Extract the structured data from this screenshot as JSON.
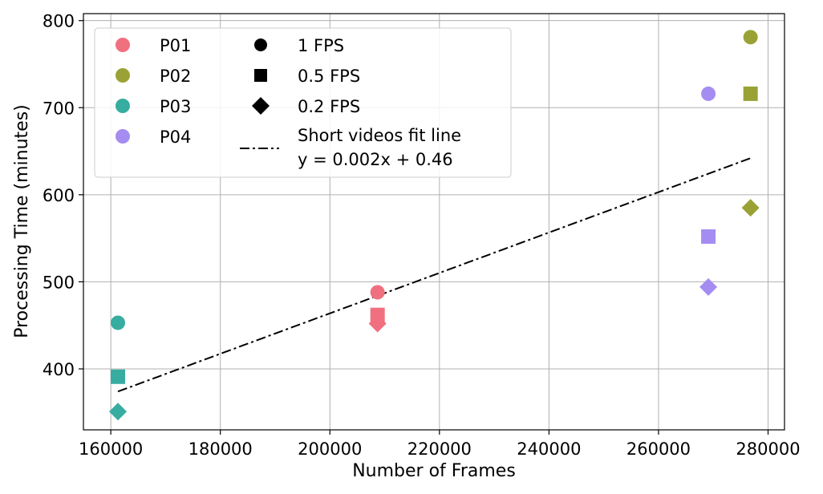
{
  "chart_data": {
    "type": "scatter",
    "xlabel": "Number of Frames",
    "ylabel": "Processing Time (minutes)",
    "xlim": [
      155000,
      283000
    ],
    "ylim": [
      330,
      808
    ],
    "xticks": [
      160000,
      180000,
      200000,
      220000,
      240000,
      260000,
      280000
    ],
    "yticks": [
      400,
      500,
      600,
      700,
      800
    ],
    "xtick_labels": [
      "160000",
      "180000",
      "200000",
      "220000",
      "240000",
      "260000",
      "280000"
    ],
    "ytick_labels": [
      "400",
      "500",
      "600",
      "700",
      "800"
    ],
    "grid": true,
    "legend_position": "top-left",
    "participants": [
      {
        "name": "P01",
        "color": "#f0707f"
      },
      {
        "name": "P02",
        "color": "#9aa235"
      },
      {
        "name": "P03",
        "color": "#36ada0"
      },
      {
        "name": "P04",
        "color": "#a58cf0"
      }
    ],
    "markers": [
      {
        "name": "1 FPS",
        "shape": "circle"
      },
      {
        "name": "0.5 FPS",
        "shape": "square"
      },
      {
        "name": "0.2 FPS",
        "shape": "diamond"
      }
    ],
    "points": [
      {
        "participant": "P01",
        "marker": "1 FPS",
        "x": 208700,
        "y": 488
      },
      {
        "participant": "P01",
        "marker": "0.5 FPS",
        "x": 208700,
        "y": 462
      },
      {
        "participant": "P01",
        "marker": "0.2 FPS",
        "x": 208700,
        "y": 452
      },
      {
        "participant": "P02",
        "marker": "1 FPS",
        "x": 276800,
        "y": 781
      },
      {
        "participant": "P02",
        "marker": "0.5 FPS",
        "x": 276800,
        "y": 716
      },
      {
        "participant": "P02",
        "marker": "0.2 FPS",
        "x": 276800,
        "y": 585
      },
      {
        "participant": "P03",
        "marker": "1 FPS",
        "x": 161300,
        "y": 453
      },
      {
        "participant": "P03",
        "marker": "0.5 FPS",
        "x": 161300,
        "y": 391
      },
      {
        "participant": "P03",
        "marker": "0.2 FPS",
        "x": 161300,
        "y": 351
      },
      {
        "participant": "P04",
        "marker": "1 FPS",
        "x": 269100,
        "y": 716
      },
      {
        "participant": "P04",
        "marker": "0.5 FPS",
        "x": 269100,
        "y": 552
      },
      {
        "participant": "P04",
        "marker": "0.2 FPS",
        "x": 269100,
        "y": 494
      }
    ],
    "fit_line": {
      "name": "Short videos fit line",
      "equation": "y = 0.002x + 0.46",
      "x": [
        161300,
        276800
      ],
      "y": [
        374,
        642
      ],
      "color": "#000000",
      "style": "dash-dot"
    }
  }
}
